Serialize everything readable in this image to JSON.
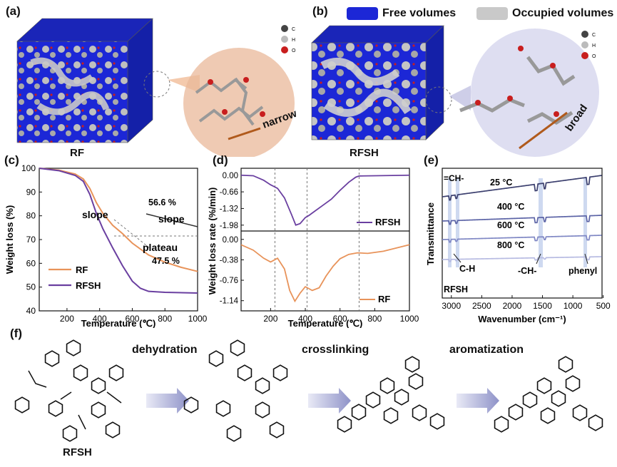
{
  "panels": {
    "a": {
      "label": "(a)",
      "caption": "RF",
      "arrow_text": "narrow"
    },
    "b": {
      "label": "(b)",
      "caption": "RFSH",
      "arrow_text": "broad",
      "legend_free": "Free volumes",
      "legend_occupied": "Occupied volumes"
    },
    "atom_legend": [
      "C",
      "H",
      "O"
    ],
    "c": {
      "label": "(c)"
    },
    "d": {
      "label": "(d)"
    },
    "e": {
      "label": "(e)"
    },
    "f": {
      "label": "(f)",
      "steps": [
        "dehydration",
        "crosslinking",
        "aromatization"
      ],
      "start_label": "RFSH"
    }
  },
  "colors": {
    "rf": "#e8935a",
    "rfsh": "#6a3fa0",
    "free": "#1c27d6"
  },
  "chart_data": [
    {
      "type": "line",
      "xlabel": "Temperature (℃)",
      "ylabel": "Weight loss (%)",
      "xlim": [
        30,
        1000
      ],
      "ylim": [
        40,
        100
      ],
      "xticks": [
        "200",
        "400",
        "600",
        "800",
        "1000"
      ],
      "yticks": [
        "100",
        "90",
        "80",
        "70",
        "60",
        "50",
        "40"
      ],
      "series": [
        {
          "name": "RF",
          "x": [
            30,
            150,
            250,
            300,
            340,
            380,
            420,
            480,
            540,
            600,
            700,
            800,
            900,
            1000
          ],
          "y": [
            100,
            99.2,
            97.6,
            95.5,
            91.5,
            85.5,
            81,
            76,
            72.5,
            68.5,
            63.5,
            60.5,
            58.3,
            56.6
          ]
        },
        {
          "name": "RFSH",
          "x": [
            30,
            150,
            250,
            300,
            340,
            380,
            420,
            480,
            540,
            600,
            650,
            700,
            800,
            1000
          ],
          "y": [
            100,
            99,
            97,
            94.5,
            89,
            81,
            74.5,
            66.5,
            59,
            52.5,
            49.5,
            48.2,
            47.8,
            47.5
          ]
        }
      ],
      "annotations": {
        "rf_value": "56.6 %",
        "rfsh_value": "47.5 %",
        "slope_left": "slope",
        "slope_right": "slope",
        "plateau": "plateau"
      }
    },
    {
      "type": "line",
      "xlabel": "Temperature (℃)",
      "ylabel": "Weight loss rate (%/min)",
      "xlim": [
        30,
        1000
      ],
      "xticks": [
        "200",
        "400",
        "600",
        "800",
        "1000"
      ],
      "ytick_top": [
        "0.00",
        "-0.66",
        "-1.32",
        "-1.98"
      ],
      "ytick_bottom": [
        "0.00",
        "-0.38",
        "-0.76",
        "-1.14"
      ],
      "vlines": [
        225,
        410,
        710
      ],
      "series": [
        {
          "name": "RFSH",
          "x": [
            30,
            100,
            160,
            200,
            240,
            280,
            320,
            345,
            370,
            400,
            420,
            450,
            500,
            550,
            600,
            650,
            690,
            710,
            800,
            1000
          ],
          "y": [
            0,
            -0.02,
            -0.2,
            -0.38,
            -0.52,
            -0.9,
            -1.55,
            -1.98,
            -1.92,
            -1.68,
            -1.6,
            -1.45,
            -1.2,
            -0.95,
            -0.6,
            -0.28,
            -0.08,
            -0.03,
            -0.02,
            0
          ]
        },
        {
          "name": "RF",
          "x": [
            30,
            100,
            160,
            200,
            240,
            280,
            310,
            340,
            370,
            400,
            440,
            480,
            520,
            560,
            600,
            650,
            700,
            760,
            850,
            1000
          ],
          "y": [
            -0.1,
            -0.2,
            -0.35,
            -0.42,
            -0.35,
            -0.55,
            -0.95,
            -1.15,
            -1.0,
            -0.88,
            -0.95,
            -0.9,
            -0.68,
            -0.5,
            -0.36,
            -0.28,
            -0.25,
            -0.26,
            -0.22,
            -0.1
          ]
        }
      ]
    },
    {
      "type": "line",
      "xlabel": "Wavenumber (cm⁻¹)",
      "ylabel": "Transmittance",
      "xlim": [
        3150,
        520
      ],
      "xticks": [
        "3000",
        "2500",
        "2000",
        "1500",
        "1000",
        "500"
      ],
      "series": [
        {
          "name": "25 °C",
          "color": "#3b3f6e"
        },
        {
          "name": "400 °C",
          "color": "#5b63a6"
        },
        {
          "name": "600 °C",
          "color": "#7f87c4"
        },
        {
          "name": "800 °C",
          "color": "#b7bbe2"
        }
      ],
      "annotations": {
        "ch_top": "=CH-",
        "ch": "C-H",
        "ch2": "-CH-",
        "phenyl": "phenyl",
        "sample": "RFSH"
      }
    }
  ]
}
